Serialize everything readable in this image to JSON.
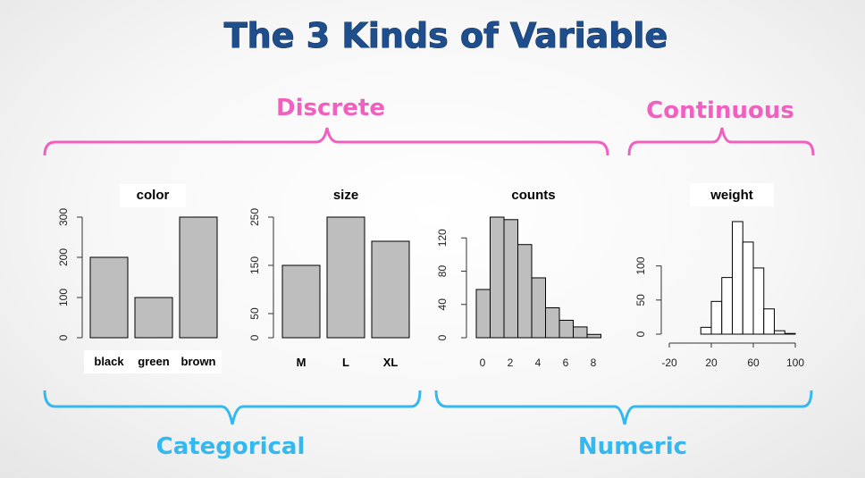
{
  "slide": {
    "title": "The 3 Kinds of Variable",
    "discrete_label": "Discrete",
    "continuous_label": "Continuous",
    "categorical_label": "Categorical",
    "numeric_label": "Numeric",
    "colors": {
      "title": "#1f4e8c",
      "pink": "#f060c0",
      "blue": "#33b8f0",
      "bar_fill": "#bebebe",
      "hist_fill": "#ffffff"
    }
  },
  "chart_data": [
    {
      "type": "bar",
      "title": "color",
      "categories": [
        "black",
        "green",
        "brown"
      ],
      "values": [
        200,
        100,
        300
      ],
      "ylim": [
        0,
        300
      ],
      "yticks": [
        0,
        100,
        200,
        300
      ]
    },
    {
      "type": "bar",
      "title": "size",
      "categories": [
        "M",
        "L",
        "XL"
      ],
      "values": [
        150,
        250,
        200
      ],
      "ylim": [
        0,
        250
      ],
      "yticks": [
        0,
        50,
        150,
        250
      ]
    },
    {
      "type": "bar",
      "title": "counts",
      "categories": [
        "0",
        "1",
        "2",
        "3",
        "4",
        "5",
        "6",
        "7",
        "8"
      ],
      "values": [
        58,
        145,
        142,
        112,
        72,
        36,
        21,
        13,
        4
      ],
      "ylim": [
        0,
        145
      ],
      "yticks": [
        0,
        40,
        80,
        120
      ],
      "xticks": [
        "0",
        "2",
        "4",
        "6",
        "8"
      ]
    },
    {
      "type": "bar",
      "title": "weight",
      "bin_edges": [
        -20,
        -10,
        0,
        10,
        20,
        30,
        40,
        50,
        60,
        70,
        80,
        90,
        100
      ],
      "values": [
        0,
        0,
        0,
        10,
        48,
        83,
        165,
        135,
        97,
        37,
        5,
        1
      ],
      "ylim": [
        0,
        165
      ],
      "yticks": [
        0,
        50,
        100
      ],
      "xticks": [
        "-20",
        "20",
        "60",
        "100"
      ]
    }
  ]
}
